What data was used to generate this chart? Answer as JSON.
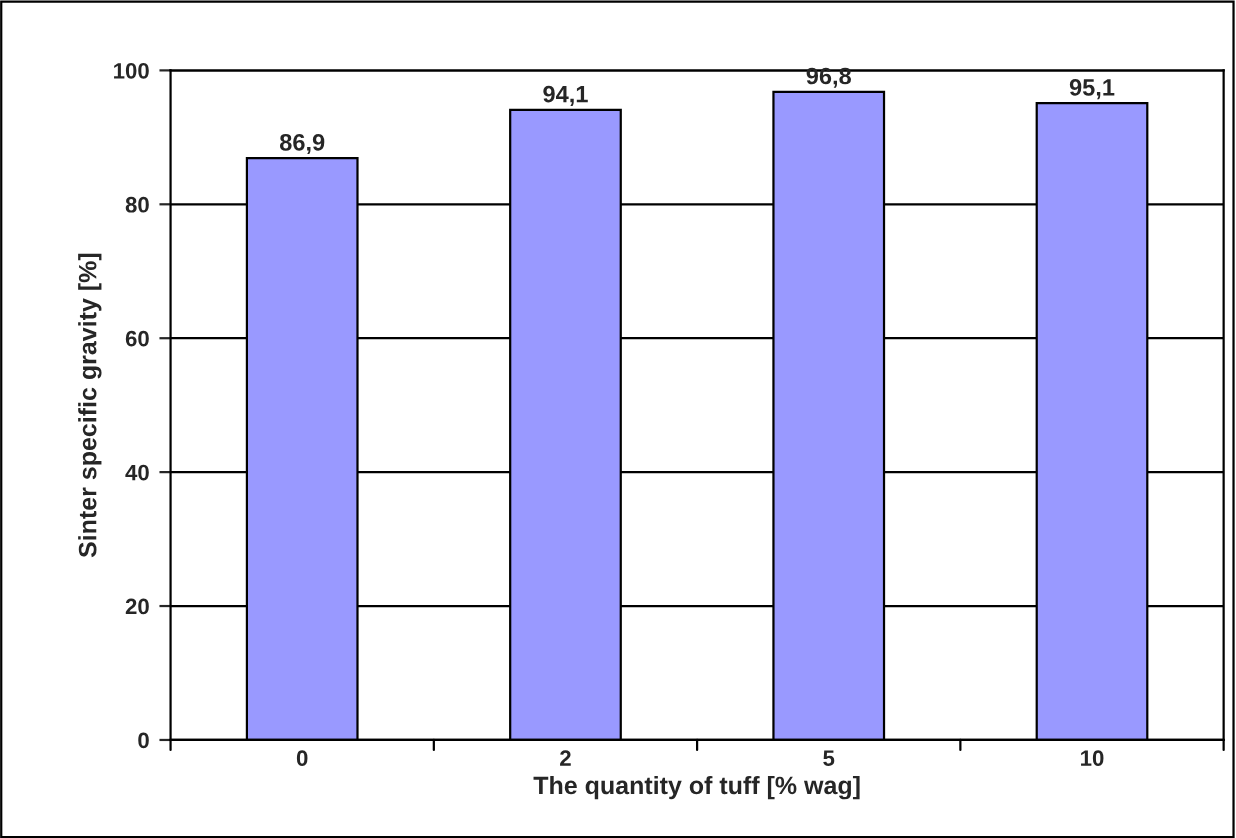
{
  "chart_data": {
    "type": "bar",
    "xlabel": "The quantity of tuff [% wag]",
    "ylabel": "Sinter specific gravity [%]",
    "categories": [
      "0",
      "2",
      "5",
      "10"
    ],
    "values": [
      86.9,
      94.1,
      96.8,
      95.1
    ],
    "value_labels": [
      "86,9",
      "94,1",
      "96,8",
      "95,1"
    ],
    "color": "#9999ff",
    "ylim": [
      0,
      100
    ],
    "yticks": [
      0,
      20,
      40,
      60,
      80,
      100
    ],
    "grid": "y"
  }
}
